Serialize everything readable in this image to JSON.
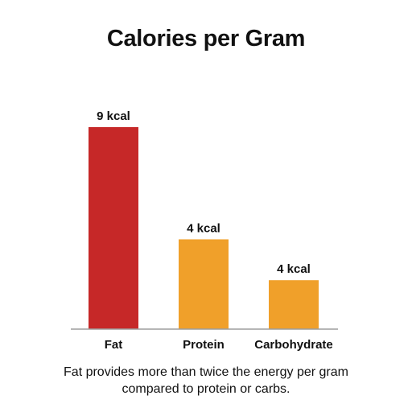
{
  "chart_data": {
    "type": "bar",
    "title": "Calories per Gram",
    "categories": [
      "Fat",
      "Protein",
      "Carbohydrate"
    ],
    "values": [
      9,
      4,
      4
    ],
    "value_labels": [
      "9 kcal",
      "4 kcal",
      "4 kcal"
    ],
    "bar_colors": [
      "#c62828",
      "#f0a02a",
      "#f0a02a"
    ],
    "xlabel": "",
    "ylabel": "",
    "grid": false,
    "legend": "none"
  },
  "caption": "Fat provides more than twice the energy per gram compared to protein or carbs."
}
